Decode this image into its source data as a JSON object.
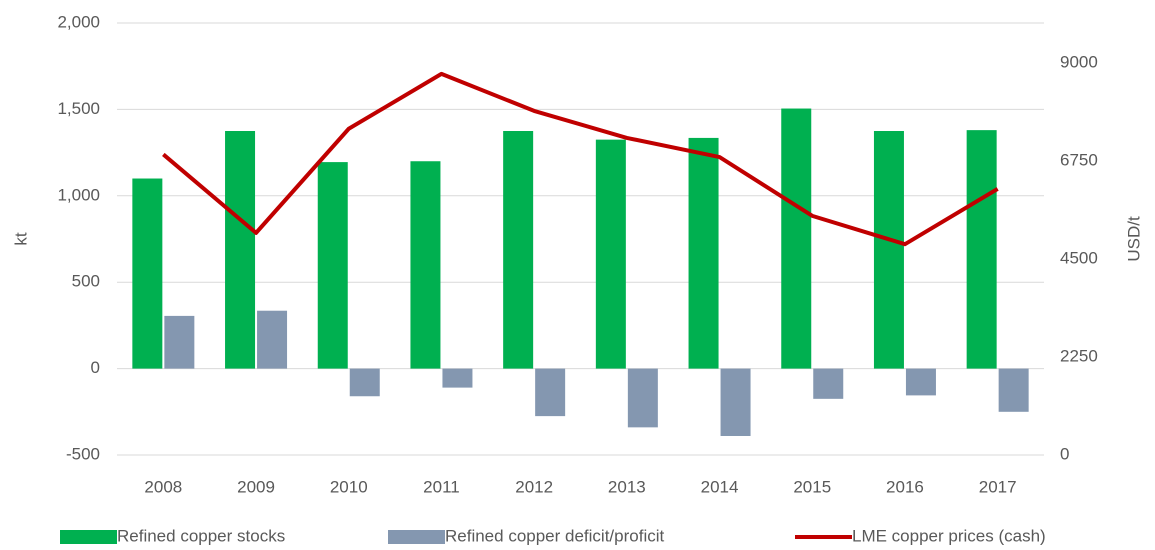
{
  "chart_data": {
    "type": "bar",
    "categories": [
      "2008",
      "2009",
      "2010",
      "2011",
      "2012",
      "2013",
      "2014",
      "2015",
      "2016",
      "2017"
    ],
    "series": [
      {
        "name": "Refined copper stocks",
        "color": "#00b050",
        "type": "bar",
        "values": [
          1100,
          1375,
          1195,
          1200,
          1375,
          1325,
          1335,
          1505,
          1375,
          1380
        ]
      },
      {
        "name": "Refined copper deficit/proficit",
        "color": "#8497b0",
        "type": "bar",
        "values": [
          305,
          335,
          -160,
          -110,
          -275,
          -340,
          -390,
          -175,
          -155,
          -250
        ]
      },
      {
        "name": "LME copper prices (cash)",
        "color": "#c00000",
        "type": "line",
        "axis": "y2",
        "values": [
          6900,
          5100,
          7490,
          8750,
          7900,
          7280,
          6840,
          5490,
          4840,
          6110
        ]
      }
    ],
    "ylabel": "kt",
    "y2label": "USD/t",
    "ylim": [
      -500,
      2000
    ],
    "yticks": [
      -500,
      0,
      500,
      {
        "value": 1000,
        "label": "1,000"
      },
      {
        "value": 1500,
        "label": "1,500"
      },
      {
        "value": 2000,
        "label": "2,000"
      }
    ],
    "y2lim": [
      0,
      9918
    ],
    "y2ticks": [
      0,
      2250,
      4500,
      6750,
      9000
    ],
    "grid": true,
    "legend": "bottom"
  }
}
